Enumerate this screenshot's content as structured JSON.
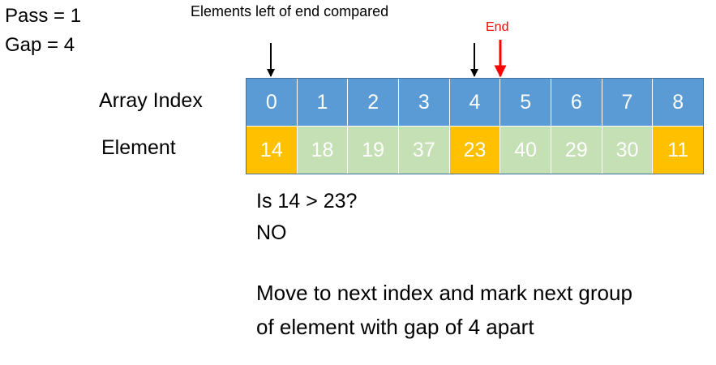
{
  "pass_text": "Pass = 1",
  "gap_text": "Gap = 4",
  "compare_note": "Elements left of end compared",
  "end_label": "End",
  "row_labels": {
    "index": "Array Index",
    "element": "Element"
  },
  "indices": [
    "0",
    "1",
    "2",
    "3",
    "4",
    "5",
    "6",
    "7",
    "8"
  ],
  "elements": [
    {
      "value": "14",
      "state": "highlighted"
    },
    {
      "value": "18",
      "state": "normal"
    },
    {
      "value": "19",
      "state": "normal"
    },
    {
      "value": "37",
      "state": "normal"
    },
    {
      "value": "23",
      "state": "highlighted"
    },
    {
      "value": "40",
      "state": "normal"
    },
    {
      "value": "29",
      "state": "normal"
    },
    {
      "value": "30",
      "state": "normal"
    },
    {
      "value": "11",
      "state": "highlighted"
    }
  ],
  "colors": {
    "index_fill": "#5b9bd5",
    "highlighted_fill": "#ffc000",
    "normal_fill": "#c5e0b4",
    "end_arrow": "#ff0000",
    "compare_arrow": "#000000"
  },
  "compare_arrow_indices": [
    0,
    4
  ],
  "end_arrow_after_index": 4,
  "question": "Is 14 > 23?",
  "answer": "NO",
  "explanation_lines": [
    "Move to next index and mark next group",
    "of element with gap of 4 apart"
  ]
}
